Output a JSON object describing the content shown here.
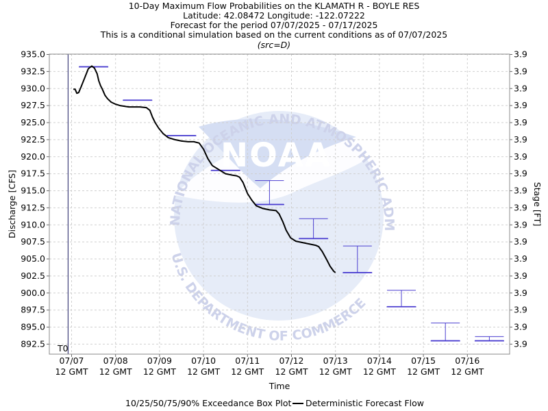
{
  "chart_data": {
    "type": "line",
    "title_lines": [
      "10-Day Maximum Flow Probabilities on the KLAMATH R - BOYLE RES",
      "Latitude: 42.08472 Longitude: -122.07222",
      "Forecast for the period 07/07/2025 - 07/17/2025",
      "This is a conditional simulation based on the current conditions as of 07/07/2025"
    ],
    "subtitle": "(src=D)",
    "xlabel": "Time",
    "ylabel": "Discharge [CFS]",
    "y2label": "Stage [FT]",
    "ylim": [
      891.5,
      935.0
    ],
    "xlim": [
      -0.42,
      10.42
    ],
    "y_ticks": [
      935.0,
      932.5,
      930.0,
      927.5,
      925.0,
      922.5,
      920.0,
      917.5,
      915.0,
      912.5,
      910.0,
      907.5,
      905.0,
      902.5,
      900.0,
      897.5,
      895.0,
      892.5
    ],
    "y_tick_labels": [
      "935.0",
      "932.5",
      "930.0",
      "927.5",
      "925.0",
      "922.5",
      "920.0",
      "917.5",
      "915.0",
      "912.5",
      "910.0",
      "907.5",
      "905.0",
      "902.5",
      "900.0",
      "897.5",
      "895.0",
      "892.5"
    ],
    "y2_tick_labels": [
      "3.9",
      "3.9",
      "3.9",
      "3.9",
      "3.9",
      "3.9",
      "3.9",
      "3.9",
      "3.9",
      "3.9",
      "3.9",
      "3.9",
      "3.9",
      "3.9",
      "3.9",
      "3.9",
      "3.9",
      "3.9"
    ],
    "x_ticks": [
      {
        "value": 0,
        "line1": "07/07",
        "line2": "12 GMT"
      },
      {
        "value": 1,
        "line1": "07/08",
        "line2": "12 GMT"
      },
      {
        "value": 2,
        "line1": "07/09",
        "line2": "12 GMT"
      },
      {
        "value": 3,
        "line1": "07/10",
        "line2": "12 GMT"
      },
      {
        "value": 4,
        "line1": "07/11",
        "line2": "12 GMT"
      },
      {
        "value": 5,
        "line1": "07/12",
        "line2": "12 GMT"
      },
      {
        "value": 6,
        "line1": "07/13",
        "line2": "12 GMT"
      },
      {
        "value": 7,
        "line1": "07/14",
        "line2": "12 GMT"
      },
      {
        "value": 8,
        "line1": "07/15",
        "line2": "12 GMT"
      },
      {
        "value": 9,
        "line1": "07/16",
        "line2": "12 GMT"
      }
    ],
    "t0": {
      "x": -0.08,
      "label": "T0"
    },
    "grid": true,
    "watermark": {
      "center_text": "NOAA",
      "ring_text": "NATIONAL OCEANIC AND ATMOSPHERIC ADMINISTRATION",
      "bottom_text": "U.S. DEPARTMENT OF COMMERCE"
    },
    "boxplots": [
      {
        "x": 0.5,
        "p10": 933.2,
        "p25": 933.2,
        "p50": 933.2,
        "p75": 933.2,
        "p90": 933.2
      },
      {
        "x": 1.5,
        "p10": 928.3,
        "p25": 928.3,
        "p50": 928.3,
        "p75": 928.3,
        "p90": 928.3
      },
      {
        "x": 2.5,
        "p10": 923.1,
        "p25": 923.1,
        "p50": 923.1,
        "p75": 923.1,
        "p90": 923.1
      },
      {
        "x": 3.5,
        "p10": 918.0,
        "p25": 918.0,
        "p50": 918.0,
        "p75": 918.0,
        "p90": 918.0
      },
      {
        "x": 4.5,
        "p10": 913.0,
        "p25": 913.0,
        "p50": 913.0,
        "p75": 913.0,
        "p90": 916.5
      },
      {
        "x": 5.5,
        "p10": 908.0,
        "p25": 908.0,
        "p50": 908.0,
        "p75": 908.0,
        "p90": 910.9
      },
      {
        "x": 6.5,
        "p10": 903.0,
        "p25": 903.0,
        "p50": 903.0,
        "p75": 903.0,
        "p90": 906.9
      },
      {
        "x": 7.5,
        "p10": 898.0,
        "p25": 898.0,
        "p50": 898.0,
        "p75": 898.0,
        "p90": 900.4
      },
      {
        "x": 8.5,
        "p10": 893.0,
        "p25": 893.0,
        "p50": 893.0,
        "p75": 893.0,
        "p90": 895.6
      },
      {
        "x": 9.5,
        "p10": 893.0,
        "p25": 893.0,
        "p50": 893.0,
        "p75": 893.0,
        "p90": 893.6
      }
    ],
    "series": [
      {
        "name": "Deterministic Forecast Flow",
        "color": "#000000",
        "x": [
          0.04,
          0.08,
          0.12,
          0.16,
          0.22,
          0.3,
          0.38,
          0.46,
          0.52,
          0.58,
          0.62,
          0.66,
          0.7,
          0.76,
          0.82,
          0.9,
          1.0,
          1.1,
          1.2,
          1.3,
          1.42,
          1.55,
          1.7,
          1.78,
          1.84,
          1.9,
          1.98,
          2.08,
          2.2,
          2.35,
          2.5,
          2.65,
          2.78,
          2.9,
          3.0,
          3.1,
          3.2,
          3.35,
          3.5,
          3.65,
          3.75,
          3.82,
          3.9,
          4.0,
          4.1,
          4.2,
          4.35,
          4.5,
          4.65,
          4.72,
          4.8,
          4.88,
          4.98,
          5.1,
          5.25,
          5.4,
          5.55,
          5.62,
          5.7,
          5.8,
          5.88,
          5.96,
          6.0
        ],
        "y": [
          929.9,
          929.9,
          929.3,
          929.4,
          930.3,
          931.6,
          932.9,
          933.3,
          933.0,
          932.2,
          931.1,
          930.4,
          929.9,
          929.0,
          928.5,
          928.0,
          927.7,
          927.5,
          927.4,
          927.3,
          927.3,
          927.3,
          927.2,
          926.8,
          925.8,
          925.0,
          924.2,
          923.4,
          922.8,
          922.5,
          922.3,
          922.2,
          922.2,
          922.0,
          921.1,
          919.7,
          918.7,
          918.1,
          917.5,
          917.3,
          917.2,
          917.0,
          916.2,
          914.6,
          913.6,
          912.8,
          912.4,
          912.2,
          912.1,
          911.6,
          910.5,
          909.2,
          908.1,
          907.6,
          907.4,
          907.2,
          907.0,
          906.8,
          906.1,
          904.9,
          903.9,
          903.2,
          903.0
        ]
      }
    ],
    "legend": {
      "placement": "bottom",
      "boxplot_label": "10/25/50/75/90% Exceedance Box Plot",
      "line_label": "Deterministic Forecast Flow"
    },
    "colors": {
      "boxplot": "#4b3fd0",
      "line": "#000000",
      "grid": "#cfcfcf",
      "t0_line": "#1a1a60",
      "watermark_fill": "#dfe7f7",
      "watermark_text": "#c9cfe8"
    }
  }
}
